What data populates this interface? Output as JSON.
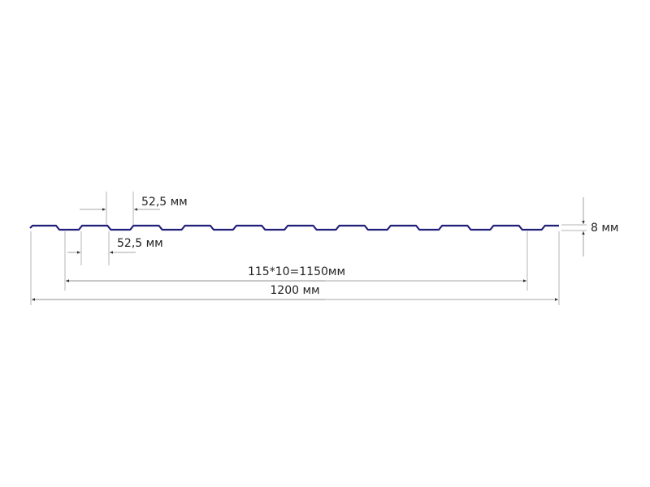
{
  "diagram": {
    "profile_color": "#1f1f7a",
    "wave_count": 10,
    "labels": {
      "crest_width": "52,5 мм",
      "trough_width": "52,5 мм",
      "height": "8 мм",
      "working_width": "115*10=1150мм",
      "total_width": "1200 мм"
    }
  }
}
